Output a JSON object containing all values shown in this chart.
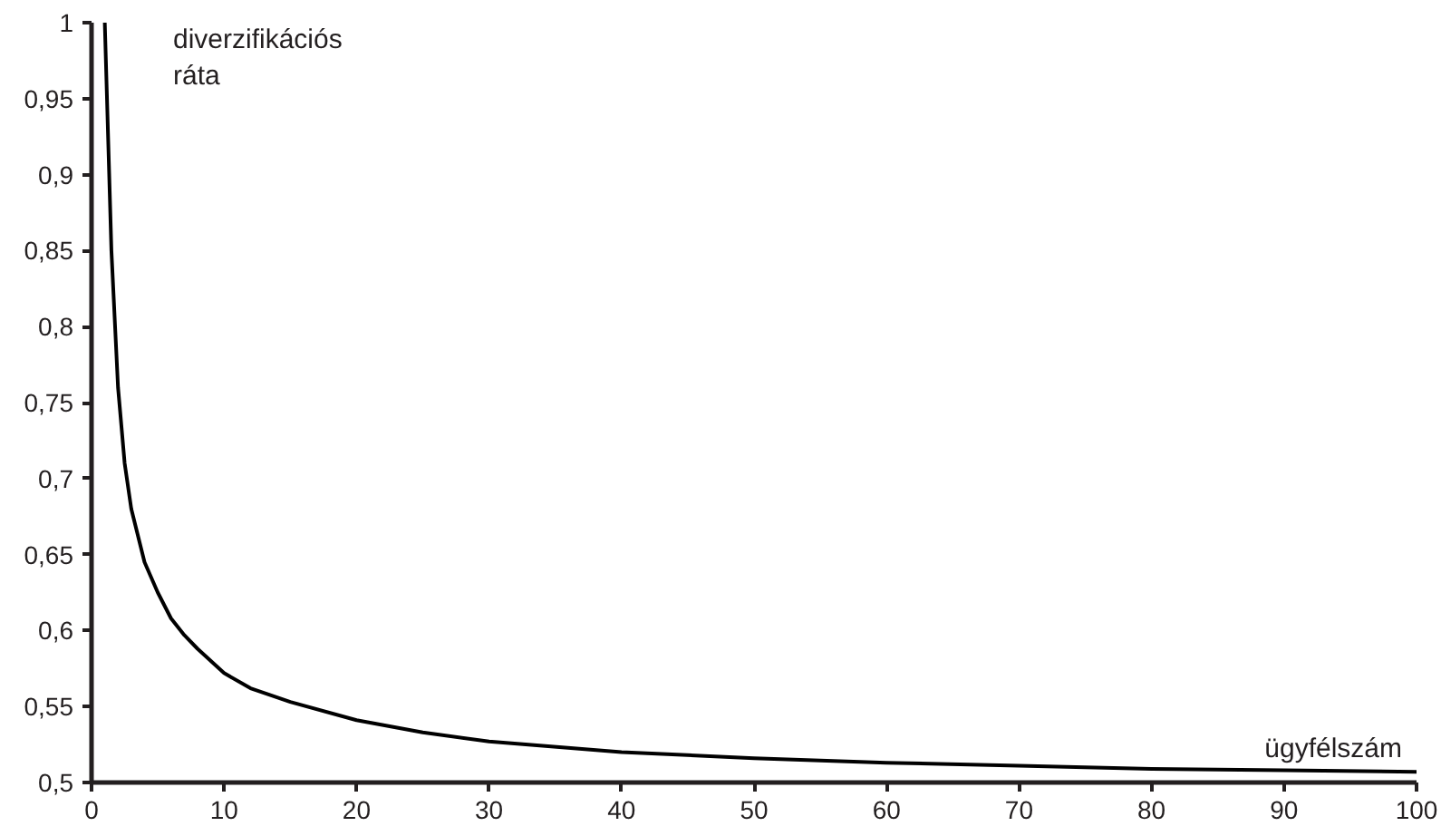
{
  "chart_data": {
    "type": "line",
    "xlabel": "ügyfélszám",
    "ylabel": "diverzifikációs\nráta",
    "x": [
      1,
      1.5,
      2,
      2.5,
      3,
      4,
      5,
      6,
      7,
      8,
      10,
      12,
      15,
      20,
      25,
      30,
      40,
      50,
      60,
      70,
      80,
      90,
      100
    ],
    "series": [
      {
        "color": "#000000",
        "values": [
          1,
          0.85,
          0.76,
          0.71,
          0.68,
          0.645,
          0.625,
          0.608,
          0.597,
          0.588,
          0.572,
          0.562,
          0.553,
          0.541,
          0.533,
          0.527,
          0.52,
          0.516,
          0.513,
          0.511,
          0.509,
          0.508,
          0.507
        ]
      }
    ],
    "xlim": [
      0,
      100
    ],
    "ylim": [
      0.5,
      1
    ],
    "xticks": [
      0,
      10,
      20,
      30,
      40,
      50,
      60,
      70,
      80,
      90,
      100
    ],
    "yticks": [
      {
        "value": 0.5,
        "label": "0,5"
      },
      {
        "value": 0.55,
        "label": "0,55"
      },
      {
        "value": 0.6,
        "label": "0,6"
      },
      {
        "value": 0.65,
        "label": "0,65"
      },
      {
        "value": 0.7,
        "label": "0,7"
      },
      {
        "value": 0.75,
        "label": "0,75"
      },
      {
        "value": 0.8,
        "label": "0,8"
      },
      {
        "value": 0.85,
        "label": "0,85"
      },
      {
        "value": 0.9,
        "label": "0,9"
      },
      {
        "value": 0.95,
        "label": "0,95"
      },
      {
        "value": 1,
        "label": "1"
      }
    ],
    "grid": false,
    "marker": "none",
    "line_style": "solid"
  }
}
